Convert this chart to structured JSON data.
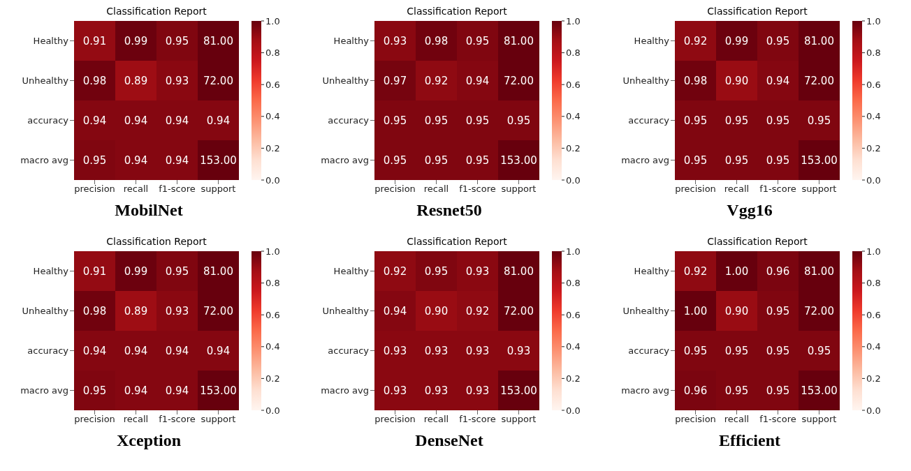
{
  "chart_data": [
    {
      "type": "heatmap",
      "title": "Classification Report",
      "categories": [
        "precision",
        "recall",
        "f1-score",
        "support"
      ],
      "y_categories": [
        "Healthy",
        "Unhealthy",
        "accuracy",
        "macro avg"
      ],
      "cells": [
        [
          0.91,
          0.99,
          0.95,
          81
        ],
        [
          0.98,
          0.89,
          0.93,
          72
        ],
        [
          0.94,
          0.94,
          0.94,
          0.94
        ],
        [
          0.95,
          0.94,
          0.94,
          153
        ]
      ],
      "cell_labels": [
        [
          "0.91",
          "0.99",
          "0.95",
          "81.00"
        ],
        [
          "0.98",
          "0.89",
          "0.93",
          "72.00"
        ],
        [
          "0.94",
          "0.94",
          "0.94",
          "0.94"
        ],
        [
          "0.95",
          "0.94",
          "0.94",
          "153.00"
        ]
      ],
      "clim": [
        0,
        1
      ],
      "cticks": [
        {
          "value": 0,
          "label": "0.0"
        },
        {
          "value": 0.2,
          "label": "0.2"
        },
        {
          "value": 0.4,
          "label": "0.4"
        },
        {
          "value": 0.6,
          "label": "0.6"
        },
        {
          "value": 0.8,
          "label": "0.8"
        },
        {
          "value": 1,
          "label": "1.0"
        }
      ],
      "annotations": [
        "MobilNet"
      ]
    },
    {
      "type": "heatmap",
      "title": "Classification Report",
      "categories": [
        "precision",
        "recall",
        "f1-score",
        "support"
      ],
      "y_categories": [
        "Healthy",
        "Unhealthy",
        "accuracy",
        "macro avg"
      ],
      "cells": [
        [
          0.93,
          0.98,
          0.95,
          81
        ],
        [
          0.97,
          0.92,
          0.94,
          72
        ],
        [
          0.95,
          0.95,
          0.95,
          0.95
        ],
        [
          0.95,
          0.95,
          0.95,
          153
        ]
      ],
      "cell_labels": [
        [
          "0.93",
          "0.98",
          "0.95",
          "81.00"
        ],
        [
          "0.97",
          "0.92",
          "0.94",
          "72.00"
        ],
        [
          "0.95",
          "0.95",
          "0.95",
          "0.95"
        ],
        [
          "0.95",
          "0.95",
          "0.95",
          "153.00"
        ]
      ],
      "clim": [
        0,
        1
      ],
      "cticks": [
        {
          "value": 0,
          "label": "0.0"
        },
        {
          "value": 0.2,
          "label": "0.2"
        },
        {
          "value": 0.4,
          "label": "0.4"
        },
        {
          "value": 0.6,
          "label": "0.6"
        },
        {
          "value": 0.8,
          "label": "0.8"
        },
        {
          "value": 1,
          "label": "1.0"
        }
      ],
      "annotations": [
        "Resnet50"
      ]
    },
    {
      "type": "heatmap",
      "title": "Classification Report",
      "categories": [
        "precision",
        "recall",
        "f1-score",
        "support"
      ],
      "y_categories": [
        "Healthy",
        "Unhealthy",
        "accuracy",
        "macro avg"
      ],
      "cells": [
        [
          0.92,
          0.99,
          0.95,
          81
        ],
        [
          0.98,
          0.9,
          0.94,
          72
        ],
        [
          0.95,
          0.95,
          0.95,
          0.95
        ],
        [
          0.95,
          0.95,
          0.95,
          153
        ]
      ],
      "cell_labels": [
        [
          "0.92",
          "0.99",
          "0.95",
          "81.00"
        ],
        [
          "0.98",
          "0.90",
          "0.94",
          "72.00"
        ],
        [
          "0.95",
          "0.95",
          "0.95",
          "0.95"
        ],
        [
          "0.95",
          "0.95",
          "0.95",
          "153.00"
        ]
      ],
      "clim": [
        0,
        1
      ],
      "cticks": [
        {
          "value": 0,
          "label": "0.0"
        },
        {
          "value": 0.2,
          "label": "0.2"
        },
        {
          "value": 0.4,
          "label": "0.4"
        },
        {
          "value": 0.6,
          "label": "0.6"
        },
        {
          "value": 0.8,
          "label": "0.8"
        },
        {
          "value": 1,
          "label": "1.0"
        }
      ],
      "annotations": [
        "Vgg16"
      ]
    },
    {
      "type": "heatmap",
      "title": "Classification Report",
      "categories": [
        "precision",
        "recall",
        "f1-score",
        "support"
      ],
      "y_categories": [
        "Healthy",
        "Unhealthy",
        "accuracy",
        "macro avg"
      ],
      "cells": [
        [
          0.91,
          0.99,
          0.95,
          81
        ],
        [
          0.98,
          0.89,
          0.93,
          72
        ],
        [
          0.94,
          0.94,
          0.94,
          0.94
        ],
        [
          0.95,
          0.94,
          0.94,
          153
        ]
      ],
      "cell_labels": [
        [
          "0.91",
          "0.99",
          "0.95",
          "81.00"
        ],
        [
          "0.98",
          "0.89",
          "0.93",
          "72.00"
        ],
        [
          "0.94",
          "0.94",
          "0.94",
          "0.94"
        ],
        [
          "0.95",
          "0.94",
          "0.94",
          "153.00"
        ]
      ],
      "clim": [
        0,
        1
      ],
      "cticks": [
        {
          "value": 0,
          "label": "0.0"
        },
        {
          "value": 0.2,
          "label": "0.2"
        },
        {
          "value": 0.4,
          "label": "0.4"
        },
        {
          "value": 0.6,
          "label": "0.6"
        },
        {
          "value": 0.8,
          "label": "0.8"
        },
        {
          "value": 1,
          "label": "1.0"
        }
      ],
      "annotations": [
        "Xception"
      ]
    },
    {
      "type": "heatmap",
      "title": "Classification Report",
      "categories": [
        "precision",
        "recall",
        "f1-score",
        "support"
      ],
      "y_categories": [
        "Healthy",
        "Unhealthy",
        "accuracy",
        "macro avg"
      ],
      "cells": [
        [
          0.92,
          0.95,
          0.93,
          81
        ],
        [
          0.94,
          0.9,
          0.92,
          72
        ],
        [
          0.93,
          0.93,
          0.93,
          0.93
        ],
        [
          0.93,
          0.93,
          0.93,
          153
        ]
      ],
      "cell_labels": [
        [
          "0.92",
          "0.95",
          "0.93",
          "81.00"
        ],
        [
          "0.94",
          "0.90",
          "0.92",
          "72.00"
        ],
        [
          "0.93",
          "0.93",
          "0.93",
          "0.93"
        ],
        [
          "0.93",
          "0.93",
          "0.93",
          "153.00"
        ]
      ],
      "clim": [
        0,
        1
      ],
      "cticks": [
        {
          "value": 0,
          "label": "0.0"
        },
        {
          "value": 0.2,
          "label": "0.2"
        },
        {
          "value": 0.4,
          "label": "0.4"
        },
        {
          "value": 0.6,
          "label": "0.6"
        },
        {
          "value": 0.8,
          "label": "0.8"
        },
        {
          "value": 1,
          "label": "1.0"
        }
      ],
      "annotations": [
        "DenseNet"
      ]
    },
    {
      "type": "heatmap",
      "title": "Classification Report",
      "categories": [
        "precision",
        "recall",
        "f1-score",
        "support"
      ],
      "y_categories": [
        "Healthy",
        "Unhealthy",
        "accuracy",
        "macro avg"
      ],
      "cells": [
        [
          0.92,
          1.0,
          0.96,
          81
        ],
        [
          1.0,
          0.9,
          0.95,
          72
        ],
        [
          0.95,
          0.95,
          0.95,
          0.95
        ],
        [
          0.96,
          0.95,
          0.95,
          153
        ]
      ],
      "cell_labels": [
        [
          "0.92",
          "1.00",
          "0.96",
          "81.00"
        ],
        [
          "1.00",
          "0.90",
          "0.95",
          "72.00"
        ],
        [
          "0.95",
          "0.95",
          "0.95",
          "0.95"
        ],
        [
          "0.96",
          "0.95",
          "0.95",
          "153.00"
        ]
      ],
      "clim": [
        0,
        1
      ],
      "cticks": [
        {
          "value": 0,
          "label": "0.0"
        },
        {
          "value": 0.2,
          "label": "0.2"
        },
        {
          "value": 0.4,
          "label": "0.4"
        },
        {
          "value": 0.6,
          "label": "0.6"
        },
        {
          "value": 0.8,
          "label": "0.8"
        },
        {
          "value": 1,
          "label": "1.0"
        }
      ],
      "annotations": [
        "Efficient"
      ]
    }
  ]
}
